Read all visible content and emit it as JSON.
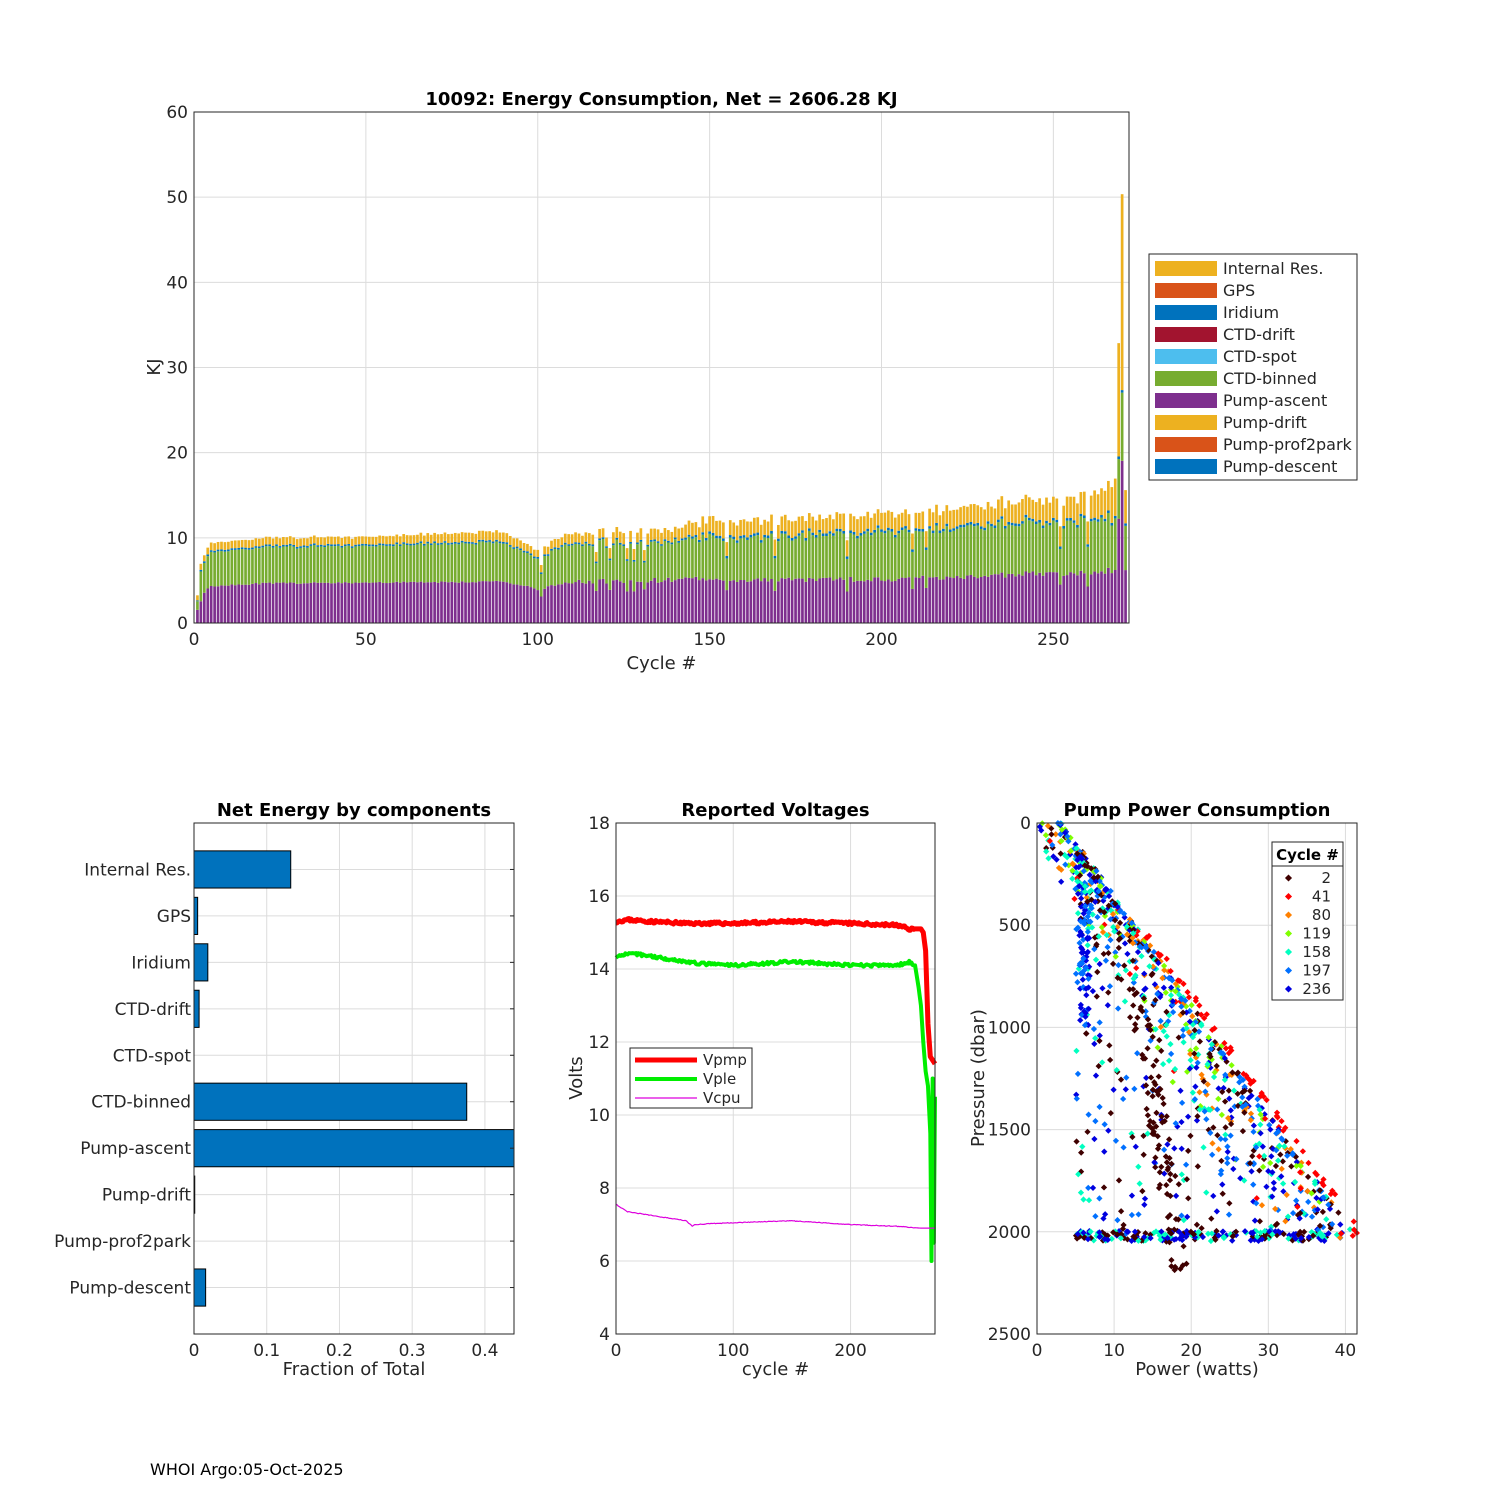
{
  "footer": "WHOI Argo:05-Oct-2025",
  "colors": {
    "internal_res": "#EDB120",
    "gps": "#D95319",
    "iridium": "#0072BD",
    "ctd_drift": "#A2142F",
    "ctd_spot": "#4DBEEE",
    "ctd_binned": "#77AC30",
    "pump_ascent": "#7E2F8E",
    "pump_drift": "#EDB120",
    "pump_prof2park": "#D95319",
    "pump_descent": "#0072BD",
    "vpmp": "#FF0000",
    "vple": "#00EE00",
    "vcpu": "#DD00DD"
  },
  "chart_data": [
    {
      "id": "energy",
      "type": "bar",
      "stacked": true,
      "title": "10092: Energy Consumption,  Net = 2606.28 KJ",
      "xlabel": "Cycle #",
      "ylabel": "KJ",
      "xlim": [
        0,
        272
      ],
      "ylim": [
        0,
        60
      ],
      "xticks": [
        0,
        50,
        100,
        150,
        200,
        250
      ],
      "yticks": [
        0,
        10,
        20,
        30,
        40,
        50,
        60
      ],
      "grid": true,
      "legend_position": "outside-right",
      "legend": [
        "Internal Res.",
        "GPS",
        "Iridium",
        "CTD-drift",
        "CTD-spot",
        "CTD-binned",
        "Pump-ascent",
        "Pump-drift",
        "Pump-prof2park",
        "Pump-descent"
      ],
      "trend_keypoints": {
        "cycle": [
          1,
          2,
          3,
          4,
          5,
          20,
          50,
          90,
          100,
          110,
          140,
          150,
          160,
          200,
          230,
          260,
          265,
          268,
          270,
          271,
          272
        ],
        "pump_ascent_kj": [
          1.5,
          2.5,
          3.5,
          4.0,
          4.3,
          4.6,
          4.7,
          4.8,
          4.0,
          4.8,
          5.0,
          5.2,
          5.0,
          5.1,
          5.5,
          5.9,
          6.0,
          6.2,
          19.0,
          6.3,
          6.3
        ],
        "ctd_binned_kj": [
          1.0,
          3.5,
          3.5,
          3.8,
          4.0,
          4.2,
          4.3,
          4.6,
          3.5,
          4.5,
          4.5,
          5.0,
          4.8,
          5.5,
          5.8,
          6.0,
          6.0,
          6.0,
          8.0,
          5.5,
          5.5
        ],
        "internal_res_kj": [
          0.6,
          0.7,
          0.7,
          0.8,
          0.9,
          0.9,
          0.9,
          1.1,
          0.8,
          1.1,
          1.3,
          1.8,
          1.7,
          1.9,
          2.1,
          2.8,
          3.5,
          4.0,
          23.0,
          4.0,
          4.0
        ],
        "iridium_kj": [
          0.1,
          0.2,
          0.2,
          0.2,
          0.2,
          0.2,
          0.2,
          0.2,
          0.2,
          0.2,
          0.2,
          0.3,
          0.3,
          0.3,
          0.3,
          0.3,
          0.3,
          0.3,
          0.3,
          0.3,
          0.3
        ],
        "pump_descent_kj": [
          0.05,
          0.05,
          0.05,
          0.05,
          0.05,
          0.05,
          0.05,
          0.05,
          0.05,
          0.05,
          0.05,
          0.05,
          0.05,
          0.05,
          0.05,
          0.05,
          0.05,
          0.05,
          0.05,
          0.05,
          0.05
        ]
      },
      "peak": {
        "cycle": 270,
        "total_kj": 50.2
      }
    },
    {
      "id": "components",
      "type": "bar",
      "orientation": "horizontal",
      "title": "Net Energy by components",
      "xlabel": "Fraction of Total",
      "xlim": [
        0,
        0.44
      ],
      "xticks": [
        0,
        0.1,
        0.2,
        0.3,
        0.4
      ],
      "xtick_labels": [
        "0",
        "0.1",
        "0.2",
        "0.3",
        "0.4"
      ],
      "grid": true,
      "categories": [
        "Internal Res.",
        "GPS",
        "Iridium",
        "CTD-drift",
        "CTD-spot",
        "CTD-binned",
        "Pump-ascent",
        "Pump-drift",
        "Pump-prof2park",
        "Pump-descent"
      ],
      "values": [
        0.133,
        0.005,
        0.019,
        0.007,
        0.0,
        0.375,
        0.44,
        0.001,
        0.0,
        0.016
      ]
    },
    {
      "id": "voltages",
      "type": "line",
      "title": "Reported Voltages",
      "xlabel": "cycle #",
      "ylabel": "Volts",
      "xlim": [
        0,
        272
      ],
      "ylim": [
        4,
        18
      ],
      "xticks": [
        0,
        100,
        200
      ],
      "yticks": [
        4,
        6,
        8,
        10,
        12,
        14,
        16,
        18
      ],
      "grid": true,
      "legend_position": "middle-left",
      "series": [
        {
          "name": "Vpmp",
          "x": [
            0,
            10,
            30,
            60,
            100,
            150,
            200,
            240,
            250,
            260,
            262,
            264,
            266,
            268,
            270,
            272
          ],
          "values": [
            15.3,
            15.35,
            15.3,
            15.25,
            15.25,
            15.3,
            15.25,
            15.2,
            15.1,
            15.1,
            15.0,
            14.5,
            12.5,
            11.6,
            11.5,
            11.4
          ]
        },
        {
          "name": "Vple",
          "x": [
            0,
            5,
            20,
            40,
            60,
            70,
            100,
            150,
            200,
            240,
            250,
            255,
            258,
            260,
            262,
            264,
            266,
            268,
            269,
            270,
            271,
            272
          ],
          "values": [
            14.3,
            14.4,
            14.4,
            14.3,
            14.2,
            14.15,
            14.1,
            14.2,
            14.1,
            14.1,
            14.2,
            14.1,
            13.5,
            13.0,
            12.0,
            11.2,
            10.8,
            9.5,
            6.0,
            11.0,
            6.5,
            10.5
          ]
        },
        {
          "name": "Vcpu",
          "x": [
            0,
            10,
            40,
            60,
            65,
            67,
            100,
            150,
            200,
            240,
            260,
            272
          ],
          "values": [
            7.55,
            7.35,
            7.2,
            7.1,
            6.95,
            7.0,
            7.05,
            7.1,
            7.0,
            6.95,
            6.9,
            6.9
          ]
        }
      ]
    },
    {
      "id": "pump_power",
      "type": "scatter",
      "title": "Pump Power Consumption",
      "xlabel": "Power (watts)",
      "ylabel": "Pressure (dbar)",
      "xlim": [
        0,
        41.5
      ],
      "ylim": [
        0,
        2500
      ],
      "y_reversed": true,
      "xticks": [
        0,
        10,
        20,
        30,
        40
      ],
      "yticks": [
        0,
        500,
        1000,
        1500,
        2000,
        2500
      ],
      "grid": true,
      "legend_title": "Cycle #",
      "legend_position": "top-right",
      "legend": [
        "2",
        "41",
        "80",
        "119",
        "158",
        "197",
        "236"
      ],
      "series": [
        {
          "name": "2",
          "color": "#3F0000"
        },
        {
          "name": "41",
          "color": "#FF0000"
        },
        {
          "name": "80",
          "color": "#FF8000"
        },
        {
          "name": "119",
          "color": "#80FF00"
        },
        {
          "name": "158",
          "color": "#00FFC0"
        },
        {
          "name": "197",
          "color": "#0070FF"
        },
        {
          "name": "236",
          "color": "#0000E0"
        }
      ],
      "envelope": {
        "power_watts": [
          3,
          41
        ],
        "pressure_dbar": [
          0,
          2020
        ]
      },
      "bottom_cluster_dbar": 2020,
      "cluster_notes": "Points span the envelope line power ≈ 3 + 0.0188×pressure, with many lower-power interior points and a band near 2020 dbar."
    }
  ]
}
